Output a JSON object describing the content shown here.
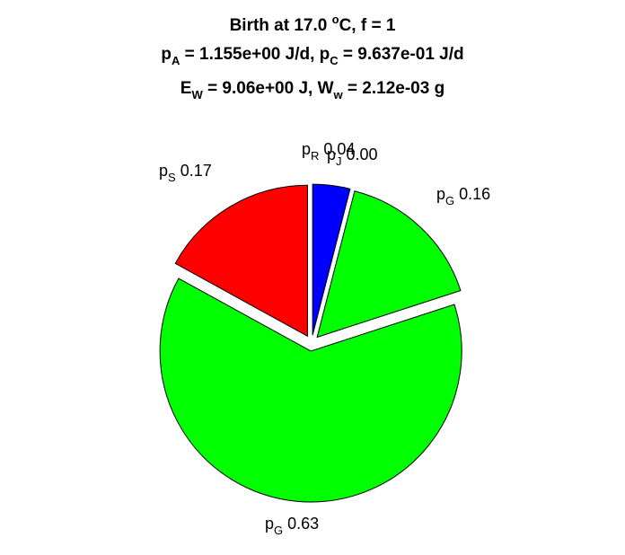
{
  "chart_data": {
    "type": "pie",
    "title_lines": [
      [
        {
          "t": "Birth at 17.0 "
        },
        {
          "t": "o",
          "sup": true
        },
        {
          "t": "C, f = 1"
        }
      ],
      [
        {
          "t": "p"
        },
        {
          "t": "A",
          "sub": true
        },
        {
          "t": " = 1.155e+00 J/d, p"
        },
        {
          "t": "C",
          "sub": true
        },
        {
          "t": " = 9.637e-01 J/d"
        }
      ],
      [
        {
          "t": "E"
        },
        {
          "t": "W",
          "sub": true
        },
        {
          "t": " = 9.06e+00 J, W"
        },
        {
          "t": "w",
          "sub": true
        },
        {
          "t": " = 2.12e-03 g"
        }
      ]
    ],
    "slices": [
      {
        "base": "p",
        "sub": "R",
        "value": 0.04,
        "value_text": "0.04",
        "color": "#0000ff"
      },
      {
        "base": "p",
        "sub": "J",
        "value": 0.0,
        "value_text": "0.00",
        "color": "#00ff00"
      },
      {
        "base": "p",
        "sub": "G",
        "value": 0.16,
        "value_text": "0.16",
        "color": "#00ff00"
      },
      {
        "base": "p",
        "sub": "G",
        "value": 0.63,
        "value_text": "0.63",
        "color": "#00ff00"
      },
      {
        "base": "p",
        "sub": "S",
        "value": 0.17,
        "value_text": "0.17",
        "color": "#ff0000"
      }
    ],
    "slice_outline_color": "#000000"
  }
}
